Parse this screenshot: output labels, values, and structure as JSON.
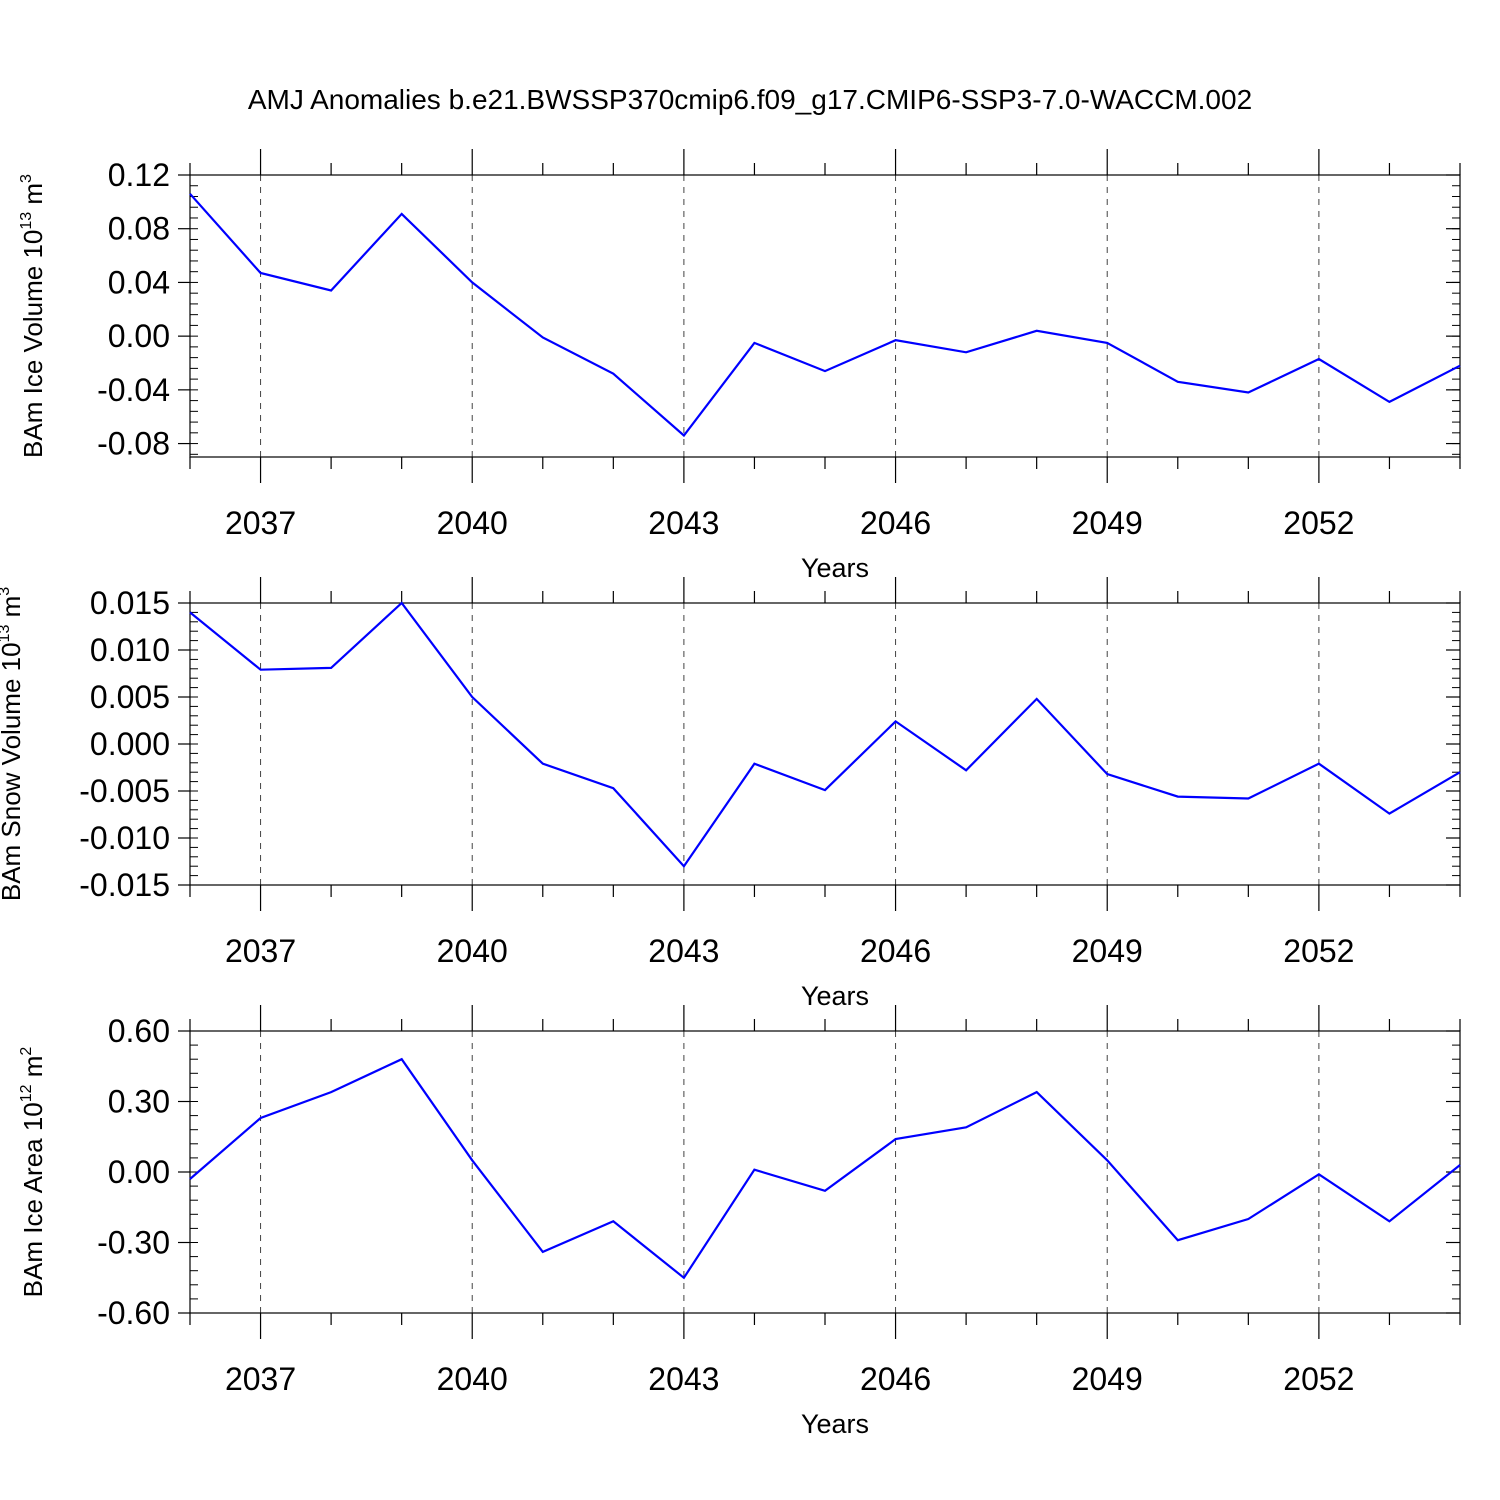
{
  "figure": {
    "title": "AMJ Anomalies b.e21.BWSSP370cmip6.f09_g17.CMIP6-SSP3-7.0-WACCM.002"
  },
  "colors": {
    "line": "#0000ff",
    "axis": "#000000",
    "grid": "#444444"
  },
  "chart_data": [
    {
      "type": "line",
      "ylabel_main": "BAm Ice Volume 10",
      "ylabel_exp": "13",
      "ylabel_unit": " m",
      "ylabel_unit_exp": "3",
      "xlabel": "Years",
      "x": [
        2036,
        2037,
        2038,
        2039,
        2040,
        2041,
        2042,
        2043,
        2044,
        2045,
        2046,
        2047,
        2048,
        2049,
        2050,
        2051,
        2052,
        2053,
        2054
      ],
      "values": [
        0.106,
        0.047,
        0.034,
        0.091,
        0.04,
        -0.001,
        -0.028,
        -0.074,
        -0.005,
        -0.026,
        -0.003,
        -0.012,
        0.004,
        -0.005,
        -0.034,
        -0.042,
        -0.017,
        -0.049,
        -0.022
      ],
      "ylim": [
        -0.09,
        0.12
      ],
      "yticks": [
        -0.08,
        -0.04,
        0.0,
        0.04,
        0.08,
        0.12
      ],
      "ytick_labels": [
        "-0.08",
        "-0.04",
        "0.00",
        "0.04",
        "0.08",
        "0.12"
      ],
      "yminor_step": 0.008,
      "xlim": [
        2036,
        2054
      ],
      "xticks": [
        2037,
        2040,
        2043,
        2046,
        2049,
        2052
      ],
      "xtick_labels": [
        "2037",
        "2040",
        "2043",
        "2046",
        "2049",
        "2052"
      ]
    },
    {
      "type": "line",
      "ylabel_main": "BAm Snow Volume 10",
      "ylabel_exp": "13",
      "ylabel_unit": " m",
      "ylabel_unit_exp": "3",
      "xlabel": "Years",
      "x": [
        2036,
        2037,
        2038,
        2039,
        2040,
        2041,
        2042,
        2043,
        2044,
        2045,
        2046,
        2047,
        2048,
        2049,
        2050,
        2051,
        2052,
        2053,
        2054
      ],
      "values": [
        0.014,
        0.0079,
        0.0081,
        0.015,
        0.005,
        -0.0021,
        -0.0047,
        -0.013,
        -0.0021,
        -0.0049,
        0.0024,
        -0.0028,
        0.0048,
        -0.0032,
        -0.0056,
        -0.0058,
        -0.0021,
        -0.0074,
        -0.003
      ],
      "ylim": [
        -0.015,
        0.015
      ],
      "yticks": [
        -0.015,
        -0.01,
        -0.005,
        0.0,
        0.005,
        0.01,
        0.015
      ],
      "ytick_labels": [
        "-0.015",
        "-0.010",
        "-0.005",
        "0.000",
        "0.005",
        "0.010",
        "0.015"
      ],
      "yminor_step": 0.001,
      "xlim": [
        2036,
        2054
      ],
      "xticks": [
        2037,
        2040,
        2043,
        2046,
        2049,
        2052
      ],
      "xtick_labels": [
        "2037",
        "2040",
        "2043",
        "2046",
        "2049",
        "2052"
      ]
    },
    {
      "type": "line",
      "ylabel_main": "BAm Ice Area 10",
      "ylabel_exp": "12",
      "ylabel_unit": " m",
      "ylabel_unit_exp": "2",
      "xlabel": "Years",
      "x": [
        2036,
        2037,
        2038,
        2039,
        2040,
        2041,
        2042,
        2043,
        2044,
        2045,
        2046,
        2047,
        2048,
        2049,
        2050,
        2051,
        2052,
        2053,
        2054
      ],
      "values": [
        -0.03,
        0.23,
        0.34,
        0.48,
        0.05,
        -0.34,
        -0.21,
        -0.45,
        0.01,
        -0.08,
        0.14,
        0.19,
        0.34,
        0.05,
        -0.29,
        -0.2,
        -0.01,
        -0.21,
        0.03
      ],
      "ylim": [
        -0.6,
        0.6
      ],
      "yticks": [
        -0.6,
        -0.3,
        0.0,
        0.3,
        0.6
      ],
      "ytick_labels": [
        "-0.60",
        "-0.30",
        "0.00",
        "0.30",
        "0.60"
      ],
      "yminor_step": 0.06,
      "xlim": [
        2036,
        2054
      ],
      "xticks": [
        2037,
        2040,
        2043,
        2046,
        2049,
        2052
      ],
      "xtick_labels": [
        "2037",
        "2040",
        "2043",
        "2046",
        "2049",
        "2052"
      ]
    }
  ]
}
